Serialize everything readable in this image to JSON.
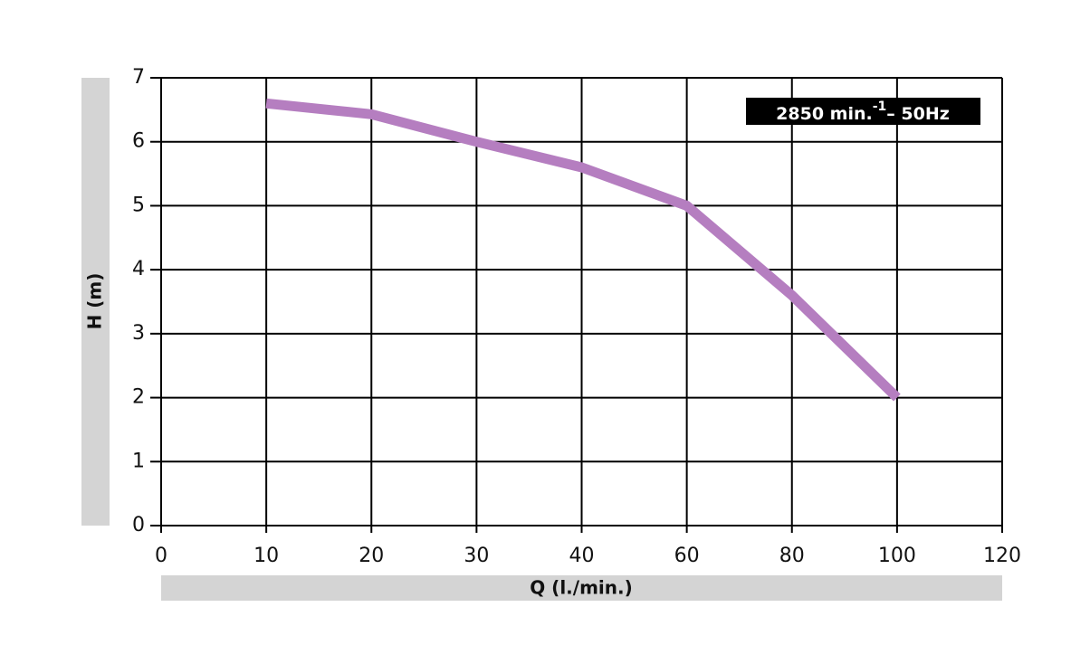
{
  "chart_data": {
    "type": "line",
    "categories": [
      "0",
      "10",
      "20",
      "30",
      "40",
      "60",
      "80",
      "100",
      "120"
    ],
    "series": [
      {
        "color": "#b57ec0",
        "values": [
          null,
          6.6,
          6.43,
          6.0,
          5.6,
          5.0,
          3.6,
          2.0,
          null
        ]
      }
    ],
    "ylim": [
      0,
      7
    ],
    "yticks": [
      0,
      1,
      2,
      3,
      4,
      5,
      6,
      7
    ],
    "grid": true,
    "y_label": "H (m)",
    "x_label": "Q (l./min.)",
    "annotation": {
      "base": "2850 min.",
      "sup": "-1",
      "tail": "– 50Hz"
    }
  }
}
